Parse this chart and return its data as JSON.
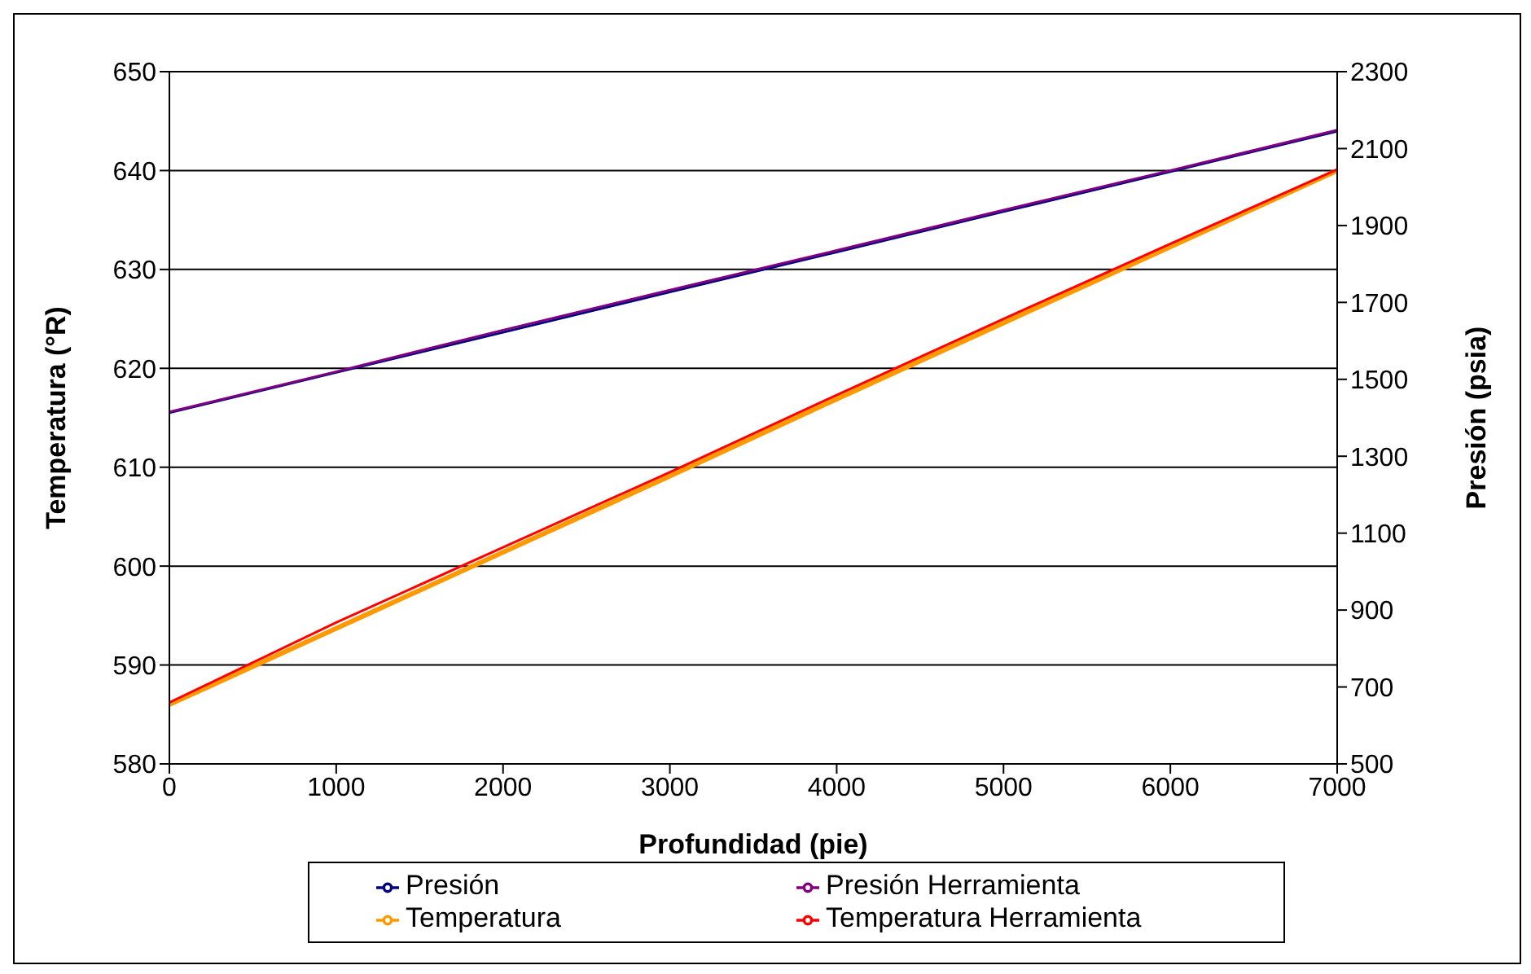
{
  "chart_data": {
    "type": "line",
    "xlabel": "Profundidad (pie)",
    "ylabel": "Temperatura (°R)",
    "y2label": "Presión (psia)",
    "x": [
      0,
      1000,
      2000,
      3000,
      4000,
      5000,
      6000,
      7000
    ],
    "series": [
      {
        "name": "Temperatura",
        "color": "#ff9900",
        "values": [
          586,
          593.7,
          601.4,
          609.1,
          616.9,
          624.6,
          632.3,
          640
        ]
      },
      {
        "name": "Temperatura Herramienta",
        "color": "#ff0000",
        "values": [
          586.2,
          594.3,
          601.9,
          609.5,
          617.3,
          625,
          632.6,
          640.1
        ]
      },
      {
        "name": "Presión",
        "color": "#000080",
        "axis": "y2",
        "values": [
          1413,
          1518,
          1622,
          1727,
          1831,
          1936,
          2040,
          2145
        ]
      },
      {
        "name": "Presión Herramienta",
        "color": "#800080",
        "axis": "y2",
        "values": [
          1415,
          1520,
          1628,
          1732,
          1835,
          1940,
          2043,
          2148
        ]
      }
    ],
    "xlim": [
      0,
      7000
    ],
    "xticks": [
      0,
      1000,
      2000,
      3000,
      4000,
      5000,
      6000,
      7000
    ],
    "ylim": [
      580,
      650
    ],
    "yticks": [
      580,
      590,
      600,
      610,
      620,
      630,
      640,
      650
    ],
    "y2lim": [
      500,
      2300
    ],
    "y2ticks": [
      500,
      700,
      900,
      1100,
      1300,
      1500,
      1700,
      1900,
      2100,
      2300
    ],
    "grid": "y",
    "legend": "bottom",
    "marker": "none",
    "line_style": "solid"
  }
}
